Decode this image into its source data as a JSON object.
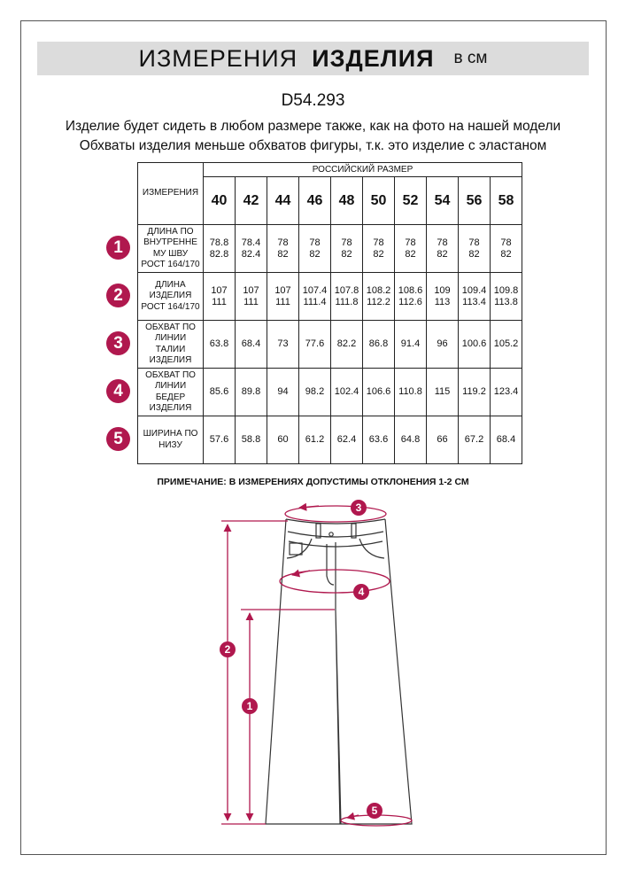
{
  "banner": {
    "title_regular": "ИЗМЕРЕНИЯ",
    "title_bold": "ИЗДЕЛИЯ",
    "unit": "в см"
  },
  "article": "D54.293",
  "subtitle_1": "Изделие будет сидеть в любом размере также, как на фото на нашей модели",
  "subtitle_2": "Обхваты изделия меньше обхватов фигуры, т.к. это изделие с  эластаном",
  "accent_color": "#b0184e",
  "table": {
    "measure_header": "ИЗМЕРЕНИЯ",
    "size_header": "РОССИЙСКИЙ РАЗМЕР",
    "sizes": [
      "40",
      "42",
      "44",
      "46",
      "48",
      "50",
      "52",
      "54",
      "56",
      "58"
    ],
    "rows": [
      {
        "num": "1",
        "label": [
          "ДЛИНА ПО",
          "ВНУТРЕННЕ",
          "МУ ШВУ",
          "РОСТ 164/170"
        ],
        "values": [
          [
            "78.8",
            "82.8"
          ],
          [
            "78.4",
            "82.4"
          ],
          [
            "78",
            "82"
          ],
          [
            "78",
            "82"
          ],
          [
            "78",
            "82"
          ],
          [
            "78",
            "82"
          ],
          [
            "78",
            "82"
          ],
          [
            "78",
            "82"
          ],
          [
            "78",
            "82"
          ],
          [
            "78",
            "82"
          ]
        ]
      },
      {
        "num": "2",
        "label": [
          "ДЛИНА",
          "ИЗДЕЛИЯ",
          "РОСТ 164/170"
        ],
        "values": [
          [
            "107",
            "111"
          ],
          [
            "107",
            "111"
          ],
          [
            "107",
            "111"
          ],
          [
            "107.4",
            "111.4"
          ],
          [
            "107.8",
            "111.8"
          ],
          [
            "108.2",
            "112.2"
          ],
          [
            "108.6",
            "112.6"
          ],
          [
            "109",
            "113"
          ],
          [
            "109.4",
            "113.4"
          ],
          [
            "109.8",
            "113.8"
          ]
        ]
      },
      {
        "num": "3",
        "label": [
          "ОБХВАТ ПО",
          "ЛИНИИ",
          "ТАЛИИ",
          "ИЗДЕЛИЯ"
        ],
        "values": [
          [
            "63.8"
          ],
          [
            "68.4"
          ],
          [
            "73"
          ],
          [
            "77.6"
          ],
          [
            "82.2"
          ],
          [
            "86.8"
          ],
          [
            "91.4"
          ],
          [
            "96"
          ],
          [
            "100.6"
          ],
          [
            "105.2"
          ]
        ]
      },
      {
        "num": "4",
        "label": [
          "ОБХВАТ ПО",
          "ЛИНИИ",
          "БЕДЕР",
          "ИЗДЕЛИЯ"
        ],
        "values": [
          [
            "85.6"
          ],
          [
            "89.8"
          ],
          [
            "94"
          ],
          [
            "98.2"
          ],
          [
            "102.4"
          ],
          [
            "106.6"
          ],
          [
            "110.8"
          ],
          [
            "115"
          ],
          [
            "119.2"
          ],
          [
            "123.4"
          ]
        ]
      },
      {
        "num": "5",
        "label": [
          "ШИРИНА ПО",
          "НИЗУ"
        ],
        "values": [
          [
            "57.6"
          ],
          [
            "58.8"
          ],
          [
            "60"
          ],
          [
            "61.2"
          ],
          [
            "62.4"
          ],
          [
            "63.6"
          ],
          [
            "64.8"
          ],
          [
            "66"
          ],
          [
            "67.2"
          ],
          [
            "68.4"
          ]
        ]
      }
    ]
  },
  "note": "ПРИМЕЧАНИЕ: В ИЗМЕРЕНИЯХ ДОПУСТИМЫ ОТКЛОНЕНИЯ 1-2 СМ",
  "diagram_markers": [
    "1",
    "2",
    "3",
    "4",
    "5"
  ]
}
